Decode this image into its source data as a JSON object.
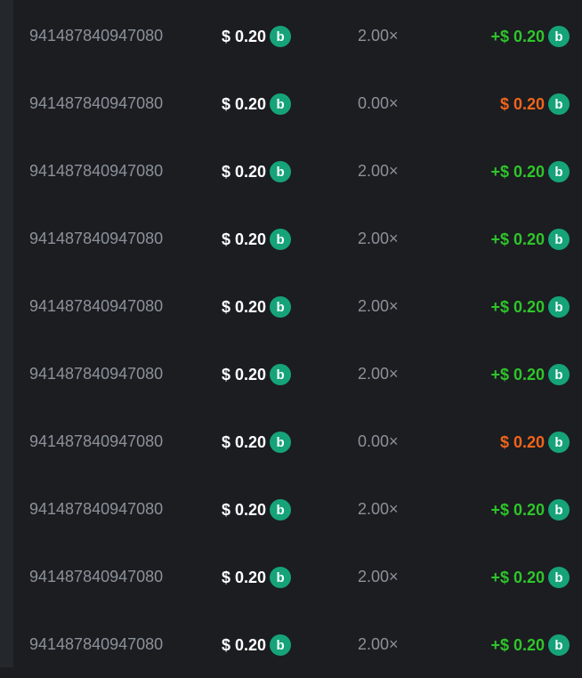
{
  "colors": {
    "win": "#2fc52a",
    "loss": "#f0651a",
    "coin": "#16a37a"
  },
  "coin_icon": "currency-coin-icon",
  "rows": [
    {
      "id": "941487840947080",
      "bet": "$ 0.20",
      "multiplier": "2.00×",
      "payout": "+$ 0.20",
      "result": "win"
    },
    {
      "id": "941487840947080",
      "bet": "$ 0.20",
      "multiplier": "0.00×",
      "payout": "$ 0.20",
      "result": "loss"
    },
    {
      "id": "941487840947080",
      "bet": "$ 0.20",
      "multiplier": "2.00×",
      "payout": "+$ 0.20",
      "result": "win"
    },
    {
      "id": "941487840947080",
      "bet": "$ 0.20",
      "multiplier": "2.00×",
      "payout": "+$ 0.20",
      "result": "win"
    },
    {
      "id": "941487840947080",
      "bet": "$ 0.20",
      "multiplier": "2.00×",
      "payout": "+$ 0.20",
      "result": "win"
    },
    {
      "id": "941487840947080",
      "bet": "$ 0.20",
      "multiplier": "2.00×",
      "payout": "+$ 0.20",
      "result": "win"
    },
    {
      "id": "941487840947080",
      "bet": "$ 0.20",
      "multiplier": "0.00×",
      "payout": "$ 0.20",
      "result": "loss"
    },
    {
      "id": "941487840947080",
      "bet": "$ 0.20",
      "multiplier": "2.00×",
      "payout": "+$ 0.20",
      "result": "win"
    },
    {
      "id": "941487840947080",
      "bet": "$ 0.20",
      "multiplier": "2.00×",
      "payout": "+$ 0.20",
      "result": "win"
    },
    {
      "id": "941487840947080",
      "bet": "$ 0.20",
      "multiplier": "2.00×",
      "payout": "+$ 0.20",
      "result": "win"
    }
  ]
}
